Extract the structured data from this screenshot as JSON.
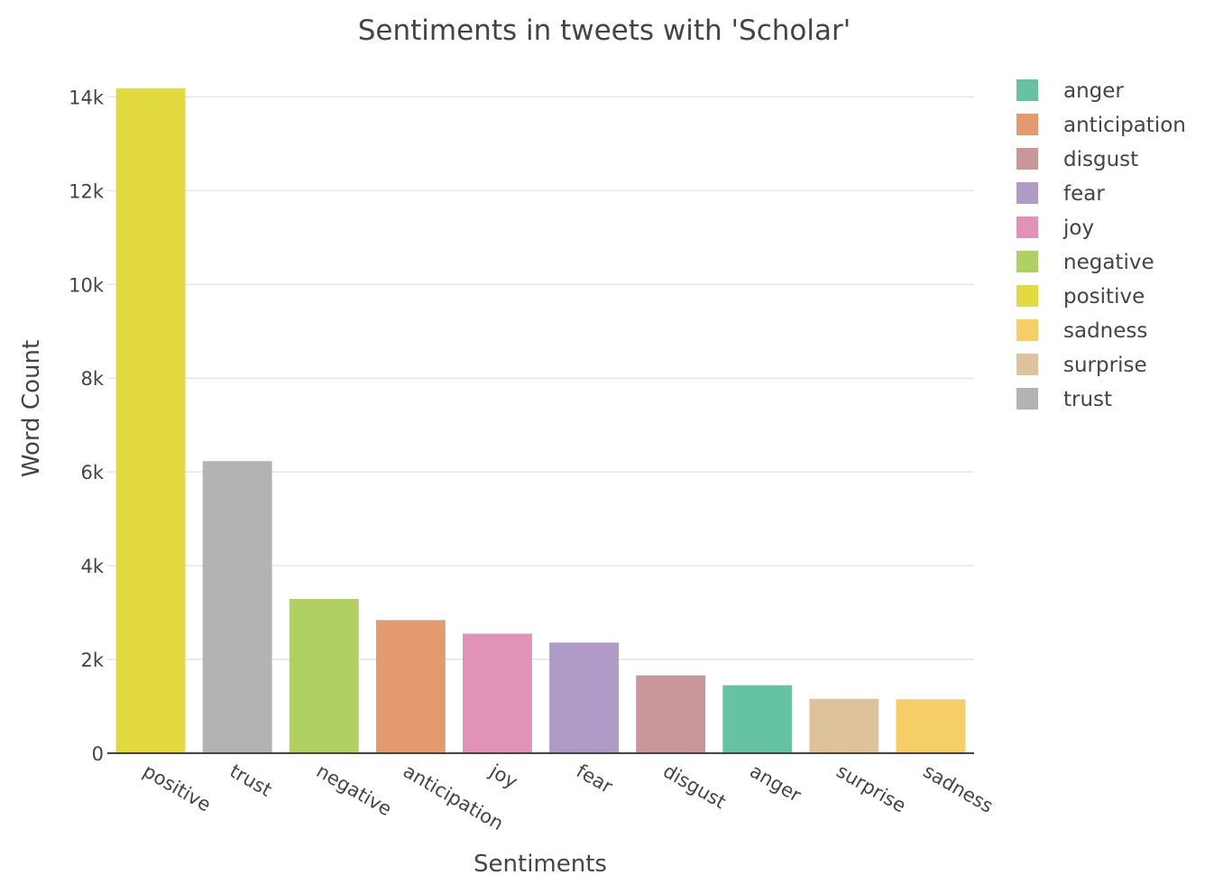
{
  "chart_data": {
    "type": "bar",
    "title": "Sentiments in tweets with 'Scholar'",
    "xlabel": "Sentiments",
    "ylabel": "Word Count",
    "categories": [
      "positive",
      "trust",
      "negative",
      "anticipation",
      "joy",
      "fear",
      "disgust",
      "anger",
      "surprise",
      "sadness"
    ],
    "values": [
      14180,
      6230,
      3290,
      2840,
      2550,
      2360,
      1660,
      1450,
      1160,
      1150
    ],
    "ylim": [
      0,
      14200
    ],
    "yticks": [
      0,
      2000,
      4000,
      6000,
      8000,
      10000,
      12000,
      14000
    ],
    "ytick_labels": [
      "0",
      "2k",
      "4k",
      "6k",
      "8k",
      "10k",
      "12k",
      "14k"
    ],
    "grid": true,
    "legend_position": "right",
    "legend": [
      {
        "label": "anger",
        "color": "#66c2a5"
      },
      {
        "label": "anticipation",
        "color": "#e39a6f"
      },
      {
        "label": "disgust",
        "color": "#c9979a"
      },
      {
        "label": "fear",
        "color": "#af9ac8"
      },
      {
        "label": "joy",
        "color": "#e193b7"
      },
      {
        "label": "negative",
        "color": "#b1d062"
      },
      {
        "label": "positive",
        "color": "#e3da40"
      },
      {
        "label": "sadness",
        "color": "#f5cf66"
      },
      {
        "label": "surprise",
        "color": "#dec29b"
      },
      {
        "label": "trust",
        "color": "#b3b3b3"
      }
    ]
  }
}
